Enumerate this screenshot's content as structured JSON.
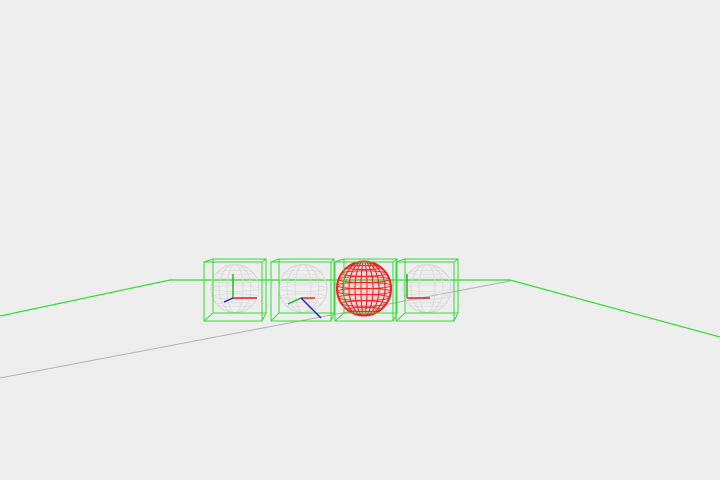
{
  "viewport": {
    "background_color": "#eeeeee",
    "objects": [
      {
        "name": "wireframe-sphere-1",
        "selected": false
      },
      {
        "name": "wireframe-sphere-2",
        "selected": false
      },
      {
        "name": "wireframe-sphere-3",
        "selected": true
      },
      {
        "name": "wireframe-sphere-4",
        "selected": false
      }
    ]
  },
  "colors": {
    "bounding_box": "#33dd33",
    "ground_outline": "#33dd33",
    "ground_diagonal": "#b4b4b4",
    "sphere_wire": "#d8d8d8",
    "selected_sphere_wire": "#ee2020",
    "axis_x": "#e02020",
    "axis_y": "#20b020",
    "axis_z": "#2020d0"
  }
}
